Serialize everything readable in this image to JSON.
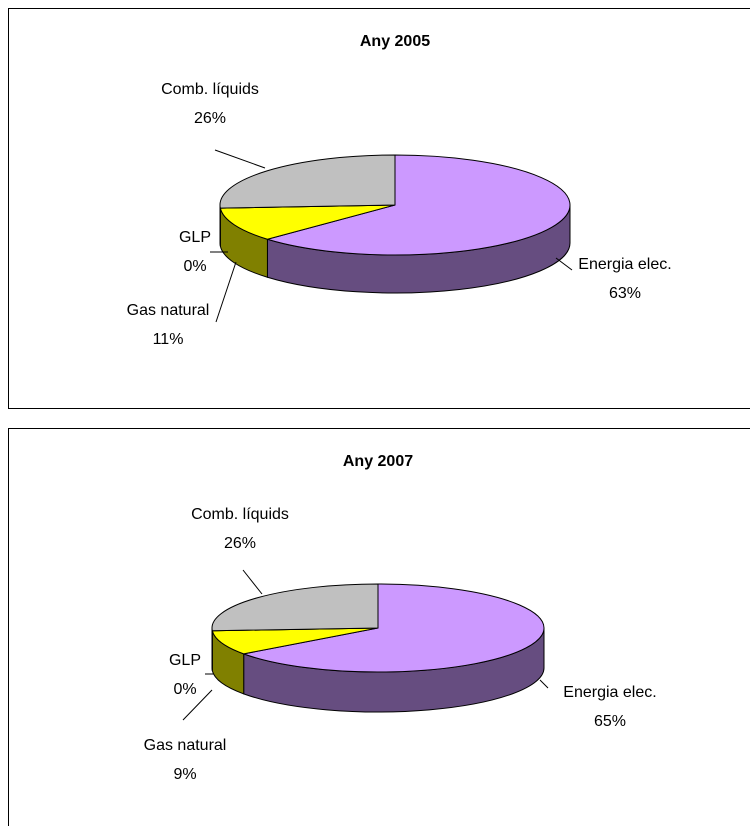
{
  "chart_data": [
    {
      "type": "pie3d",
      "title": "Any 2005",
      "categories": [
        "Energia elec.",
        "Gas natural",
        "GLP",
        "Comb. líquids"
      ],
      "values": [
        63,
        11,
        0,
        26
      ],
      "value_labels": [
        "63%",
        "11%",
        "0%",
        "26%"
      ],
      "colors": [
        "#cc99ff",
        "#ffff00",
        "#808080",
        "#c0c0c0"
      ]
    },
    {
      "type": "pie3d",
      "title": "Any 2007",
      "categories": [
        "Energia elec.",
        "Gas natural",
        "GLP",
        "Comb. líquids"
      ],
      "values": [
        65,
        9,
        0,
        26
      ],
      "value_labels": [
        "65%",
        "9%",
        "0%",
        "26%"
      ],
      "colors": [
        "#cc99ff",
        "#ffff00",
        "#808080",
        "#c0c0c0"
      ]
    }
  ]
}
